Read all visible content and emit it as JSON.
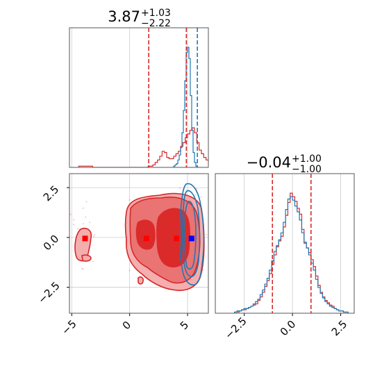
{
  "chart_data": [
    {
      "type": "histogram",
      "panel": "top-left marginal of parameter 1",
      "title": {
        "median": "3.87",
        "plus": "+1.03",
        "minus": "−2.22"
      },
      "xlim": [
        -5.2,
        6.8
      ],
      "grid": true,
      "quantile_lines": [
        1.65,
        4.9
      ],
      "blue_quantile_line": 5.85,
      "series": [
        {
          "color": "#d62728",
          "x_start": -4.4,
          "bin_width": 0.2,
          "values": [
            1,
            1,
            1,
            1,
            1,
            1,
            0,
            0,
            0,
            0,
            0,
            0,
            0,
            0,
            0,
            0,
            0,
            0,
            0,
            0,
            0,
            0,
            0,
            0,
            0,
            0,
            0,
            0,
            0,
            0,
            1,
            1,
            2,
            4,
            6,
            9,
            13,
            12,
            8,
            7,
            7,
            9,
            11,
            13,
            17,
            20,
            24,
            27,
            30,
            32,
            28,
            20,
            14,
            11,
            8,
            6,
            4,
            3,
            2,
            1,
            1,
            0,
            0
          ]
        },
        {
          "color": "#1f77b4",
          "x_start": 3.8,
          "bin_width": 0.12,
          "values": [
            1,
            2,
            3,
            6,
            10,
            16,
            28,
            46,
            70,
            93,
            97,
            88,
            58,
            30,
            12,
            4,
            1
          ]
        }
      ]
    },
    {
      "type": "histogram",
      "panel": "bottom-right marginal of parameter 2",
      "title": {
        "median": "−0.04",
        "plus": "+1.00",
        "minus": "−1.00"
      },
      "xlim": [
        -4.0,
        3.2
      ],
      "xticks": [
        "−2.5",
        "0.0",
        "2.5"
      ],
      "grid": true,
      "quantile_lines": [
        -1.04,
        0.96
      ],
      "series": [
        {
          "color": "#d62728",
          "x_start": -3.0,
          "bin_width": 0.12,
          "values": [
            1,
            1,
            2,
            3,
            3,
            4,
            5,
            6,
            7,
            8,
            11,
            14,
            18,
            23,
            28,
            34,
            42,
            50,
            57,
            62,
            66,
            74,
            84,
            95,
            103,
            100,
            96,
            90,
            85,
            72,
            60,
            56,
            52,
            46,
            40,
            32,
            24,
            18,
            14,
            11,
            9,
            7,
            6,
            4,
            3,
            2,
            2,
            1,
            1
          ]
        },
        {
          "color": "#1f77b4",
          "x_start": -3.0,
          "bin_width": 0.12,
          "values": [
            1,
            2,
            2,
            3,
            4,
            4,
            5,
            6,
            8,
            10,
            12,
            16,
            20,
            25,
            30,
            37,
            45,
            53,
            58,
            63,
            69,
            78,
            89,
            98,
            100,
            97,
            92,
            87,
            80,
            69,
            61,
            56,
            50,
            43,
            37,
            29,
            22,
            17,
            13,
            10,
            8,
            6,
            5,
            4,
            3,
            2,
            2,
            1,
            1
          ]
        }
      ]
    },
    {
      "type": "contour",
      "panel": "bottom-left 2D joint distribution",
      "xlim": [
        -5.2,
        6.8
      ],
      "ylim": [
        -3.8,
        3.2
      ],
      "xticks": [
        "−5",
        "0",
        "5"
      ],
      "yticks": [
        "2.5",
        "0.0",
        "−2.5"
      ],
      "grid": true,
      "markers": [
        {
          "color": "#ff0000",
          "x": -3.85,
          "y": -0.05
        },
        {
          "color": "#ff0000",
          "x": 1.45,
          "y": -0.05
        },
        {
          "color": "#ff0000",
          "x": 4.05,
          "y": -0.05
        },
        {
          "color": "#0000ff",
          "x": 5.35,
          "y": -0.05
        }
      ]
    }
  ]
}
